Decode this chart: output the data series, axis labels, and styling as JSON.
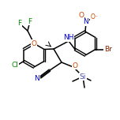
{
  "background_color": "#ffffff",
  "bond_color": "#000000",
  "atom_colors": {
    "F": "#008800",
    "O": "#cc4400",
    "N": "#0000cc",
    "Cl": "#008800",
    "Br": "#882200",
    "Si": "#4444aa",
    "C": "#000000",
    "H": "#000000"
  },
  "figsize": [
    1.52,
    1.52
  ],
  "dpi": 100
}
